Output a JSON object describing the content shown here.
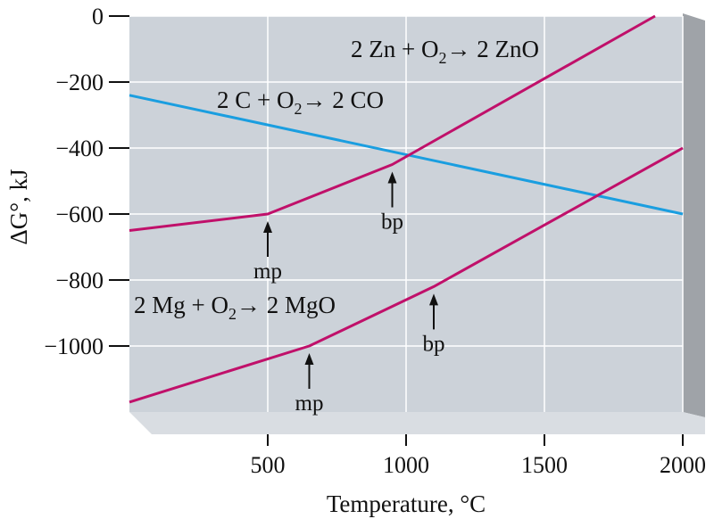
{
  "chart_data": {
    "type": "line",
    "title": "",
    "xlabel": "Temperature, °C",
    "ylabel": "ΔG°, kJ",
    "xlim": [
      0,
      2000
    ],
    "ylim": [
      -1200,
      0
    ],
    "x_ticks": [
      500,
      1000,
      1500,
      2000
    ],
    "x_tick_labels": [
      "500",
      "1000",
      "1500",
      "2000"
    ],
    "y_ticks": [
      0,
      -200,
      -400,
      -600,
      -800,
      -1000
    ],
    "y_tick_labels": [
      "0",
      "−200",
      "−400",
      "−600",
      "−800",
      "−1000"
    ],
    "grid": true,
    "series": [
      {
        "name": "2 C + O2 → 2 CO",
        "label_parts": [
          "2 C + O",
          "2",
          "→ 2 CO"
        ],
        "color": "#1a9ee0",
        "points": [
          [
            0,
            -240
          ],
          [
            2000,
            -600
          ]
        ]
      },
      {
        "name": "2 Zn + O2 → 2 ZnO",
        "label_parts": [
          "2 Zn + O",
          "2",
          "→ 2 ZnO"
        ],
        "color": "#c0106a",
        "points": [
          [
            0,
            -650
          ],
          [
            500,
            -600
          ],
          [
            950,
            -450
          ],
          [
            1900,
            0
          ]
        ]
      },
      {
        "name": "2 Mg + O2 → 2 MgO",
        "label_parts": [
          "2 Mg + O",
          "2",
          "→ 2 MgO"
        ],
        "color": "#c0106a",
        "points": [
          [
            0,
            -1170
          ],
          [
            650,
            -1000
          ],
          [
            1100,
            -820
          ],
          [
            2000,
            -400
          ]
        ]
      }
    ],
    "annotations": [
      {
        "text": "mp",
        "x": 500,
        "y": -600
      },
      {
        "text": "bp",
        "x": 950,
        "y": -450
      },
      {
        "text": "mp",
        "x": 650,
        "y": -1000
      },
      {
        "text": "bp",
        "x": 1100,
        "y": -820
      }
    ],
    "colors": {
      "plot_background": "#ccd2d9",
      "floor": "#d9dde2",
      "side_wall": "#9fa3a8",
      "grid": "#ffffff"
    }
  }
}
